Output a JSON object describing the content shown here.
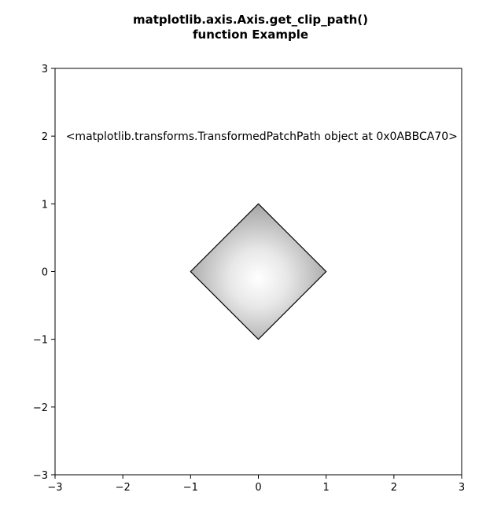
{
  "chart_data": {
    "type": "scatter",
    "title_lines": [
      "matplotlib.axis.Axis.get_clip_path()",
      "function Example"
    ],
    "xlabel": "",
    "ylabel": "",
    "xlim": [
      -3,
      3
    ],
    "ylim": [
      -3,
      3
    ],
    "xticks": [
      -3,
      -2,
      -1,
      0,
      1,
      2,
      3
    ],
    "yticks": [
      -3,
      -2,
      -1,
      0,
      1,
      2,
      3
    ],
    "xtick_labels": [
      "−3",
      "−2",
      "−1",
      "0",
      "1",
      "2",
      "3"
    ],
    "ytick_labels": [
      "−3",
      "−2",
      "−1",
      "0",
      "1",
      "2",
      "3"
    ],
    "grid": false,
    "clip_polygon": [
      [
        0,
        1
      ],
      [
        1,
        0
      ],
      [
        0,
        -1
      ],
      [
        -1,
        0
      ]
    ],
    "image_fill": "radial grayscale gradient, white near center, gray at edges",
    "annotation": {
      "text": "<matplotlib.transforms.TransformedPatchPath object at 0x0ABBCA70>",
      "x": 0.05,
      "y": 2.0
    }
  }
}
